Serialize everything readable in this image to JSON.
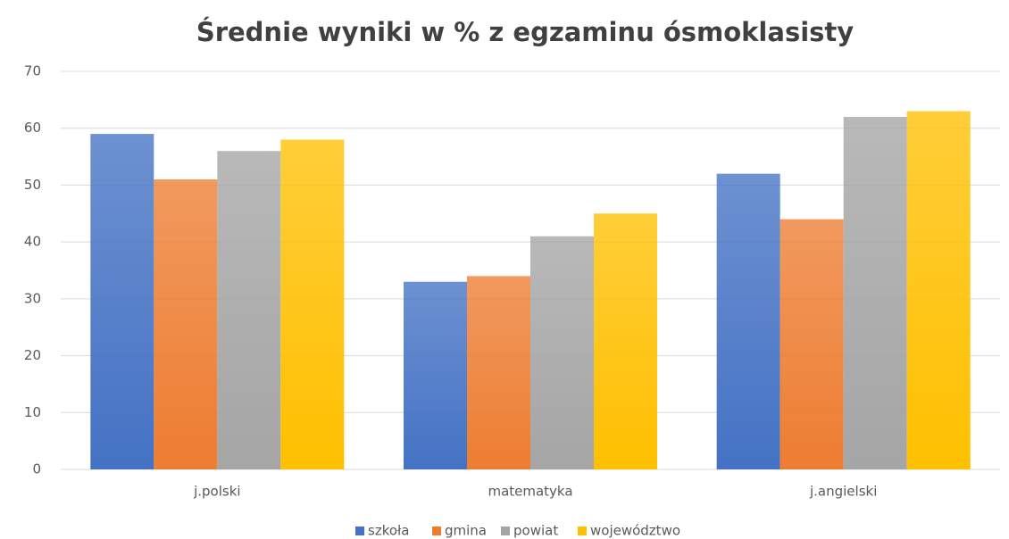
{
  "chart_data": {
    "type": "bar",
    "title": "Średnie wyniki w % z egzaminu ósmoklasisty",
    "categories": [
      "j.polski",
      "matematyka",
      "j.angielski"
    ],
    "series": [
      {
        "name": "szkoła",
        "color": "#4472c4",
        "values": [
          59,
          33,
          52
        ]
      },
      {
        "name": "gmina",
        "color": "#ed7d31",
        "values": [
          51,
          34,
          44
        ]
      },
      {
        "name": "powiat",
        "color": "#a5a5a5",
        "values": [
          56,
          41,
          62
        ]
      },
      {
        "name": "województwo",
        "color": "#ffc000",
        "values": [
          58,
          45,
          63
        ]
      }
    ],
    "ylim": [
      0,
      70
    ],
    "yticks": [
      0,
      10,
      20,
      30,
      40,
      50,
      60,
      70
    ],
    "grid": true,
    "legend": "bottom"
  }
}
